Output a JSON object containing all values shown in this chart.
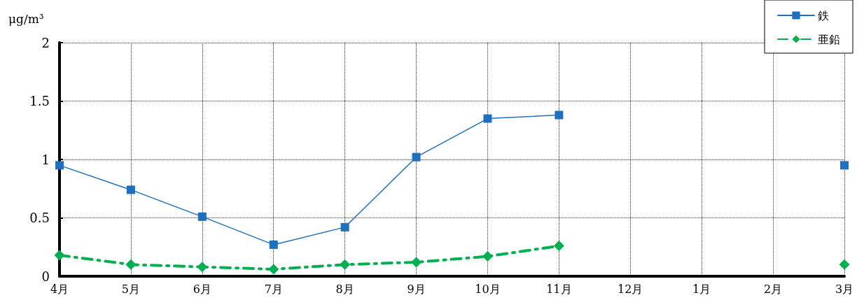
{
  "chart_data": {
    "type": "line",
    "ylabel": "μg/m³",
    "categories": [
      "4月",
      "5月",
      "6月",
      "7月",
      "8月",
      "9月",
      "10月",
      "11月",
      "12月",
      "1月",
      "2月",
      "3月"
    ],
    "series": [
      {
        "name": "鉄",
        "color": "#1f6fbf",
        "marker": "square",
        "line_style": "solid",
        "values": [
          0.95,
          0.74,
          0.51,
          0.27,
          0.42,
          1.02,
          1.35,
          1.38,
          null,
          null,
          null,
          0.95
        ]
      },
      {
        "name": "亜鉛",
        "color": "#00b050",
        "marker": "diamond",
        "line_style": "dashdot",
        "values": [
          0.18,
          0.1,
          0.08,
          0.06,
          0.1,
          0.12,
          0.17,
          0.26,
          null,
          null,
          null,
          0.1
        ]
      }
    ],
    "ylim": [
      0,
      2
    ],
    "yticks": [
      0,
      0.5,
      1,
      1.5,
      2
    ],
    "grid": true,
    "legend": "top right"
  }
}
